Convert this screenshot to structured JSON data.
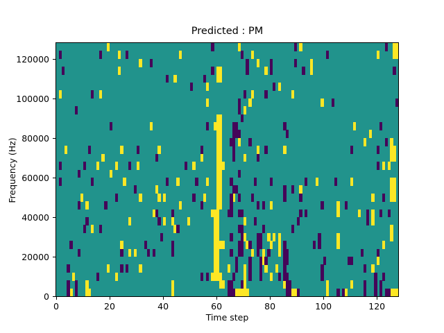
{
  "chart_data": {
    "type": "heatmap",
    "title": "Predicted : PM",
    "xlabel": "Time step",
    "ylabel": "Frequency (Hz)",
    "x_range": [
      0,
      128
    ],
    "y_range_hz": [
      0,
      128000
    ],
    "grid": {
      "cols": 128,
      "rows": 32,
      "hz_per_row": 4000
    },
    "xticks": [
      0,
      20,
      40,
      60,
      80,
      100,
      120
    ],
    "xtick_labels": [
      "0",
      "20",
      "40",
      "60",
      "80",
      "100",
      "120"
    ],
    "yticks": [
      0,
      20000,
      40000,
      60000,
      80000,
      100000,
      120000
    ],
    "ytick_labels": [
      "0",
      "20000",
      "40000",
      "60000",
      "80000",
      "100000",
      "120000"
    ],
    "legend": "none",
    "grid_lines": "off",
    "colors": {
      "background": "#21938c",
      "high": "#fde725",
      "low": "#450559"
    },
    "cells_high": [
      [
        19,
        31
      ],
      [
        68,
        31
      ],
      [
        91,
        31
      ],
      [
        126,
        31
      ],
      [
        127,
        31
      ],
      [
        23,
        30
      ],
      [
        46,
        30
      ],
      [
        73,
        30
      ],
      [
        120,
        30
      ],
      [
        126,
        30
      ],
      [
        127,
        30
      ],
      [
        31,
        29
      ],
      [
        75,
        29
      ],
      [
        95,
        29
      ],
      [
        23,
        28
      ],
      [
        60,
        28
      ],
      [
        61,
        28
      ],
      [
        78,
        28
      ],
      [
        95,
        28
      ],
      [
        44,
        27
      ],
      [
        60,
        27
      ],
      [
        61,
        27
      ],
      [
        56,
        26
      ],
      [
        83,
        26
      ],
      [
        1,
        25
      ],
      [
        16,
        25
      ],
      [
        73,
        25
      ],
      [
        88,
        25
      ],
      [
        56,
        24
      ],
      [
        72,
        24
      ],
      [
        99,
        24
      ],
      [
        70,
        23
      ],
      [
        60,
        22
      ],
      [
        61,
        22
      ],
      [
        35,
        21
      ],
      [
        59,
        21
      ],
      [
        60,
        21
      ],
      [
        61,
        21
      ],
      [
        111,
        21
      ],
      [
        60,
        20
      ],
      [
        61,
        20
      ],
      [
        117,
        20
      ],
      [
        60,
        19
      ],
      [
        61,
        19
      ],
      [
        68,
        19
      ],
      [
        115,
        19
      ],
      [
        125,
        19
      ],
      [
        3,
        18
      ],
      [
        24,
        18
      ],
      [
        38,
        18
      ],
      [
        60,
        18
      ],
      [
        61,
        18
      ],
      [
        75,
        18
      ],
      [
        85,
        18
      ],
      [
        125,
        18
      ],
      [
        126,
        18
      ],
      [
        17,
        17
      ],
      [
        54,
        17
      ],
      [
        60,
        17
      ],
      [
        61,
        17
      ],
      [
        70,
        17
      ],
      [
        125,
        17
      ],
      [
        126,
        17
      ],
      [
        15,
        16
      ],
      [
        22,
        16
      ],
      [
        30,
        16
      ],
      [
        51,
        16
      ],
      [
        60,
        16
      ],
      [
        61,
        16
      ],
      [
        62,
        16
      ],
      [
        122,
        16
      ],
      [
        124,
        16
      ],
      [
        20,
        15
      ],
      [
        60,
        15
      ],
      [
        61,
        15
      ],
      [
        25,
        14
      ],
      [
        45,
        14
      ],
      [
        56,
        14
      ],
      [
        60,
        14
      ],
      [
        61,
        14
      ],
      [
        97,
        14
      ],
      [
        110,
        14
      ],
      [
        125,
        14
      ],
      [
        126,
        14
      ],
      [
        37,
        13
      ],
      [
        60,
        13
      ],
      [
        61,
        13
      ],
      [
        91,
        13
      ],
      [
        125,
        13
      ],
      [
        126,
        13
      ],
      [
        9,
        12
      ],
      [
        31,
        12
      ],
      [
        38,
        12
      ],
      [
        40,
        12
      ],
      [
        55,
        12
      ],
      [
        60,
        12
      ],
      [
        61,
        12
      ],
      [
        66,
        12
      ],
      [
        118,
        12
      ],
      [
        125,
        12
      ],
      [
        126,
        12
      ],
      [
        11,
        11
      ],
      [
        46,
        11
      ],
      [
        60,
        11
      ],
      [
        61,
        11
      ],
      [
        80,
        11
      ],
      [
        105,
        11
      ],
      [
        36,
        10
      ],
      [
        58,
        10
      ],
      [
        59,
        10
      ],
      [
        60,
        10
      ],
      [
        105,
        10
      ],
      [
        113,
        10
      ],
      [
        118,
        10
      ],
      [
        27,
        9
      ],
      [
        40,
        9
      ],
      [
        43,
        9
      ],
      [
        49,
        9
      ],
      [
        59,
        9
      ],
      [
        60,
        9
      ],
      [
        70,
        9
      ],
      [
        118,
        9
      ],
      [
        13,
        8
      ],
      [
        44,
        8
      ],
      [
        59,
        8
      ],
      [
        60,
        8
      ],
      [
        125,
        8
      ],
      [
        59,
        7
      ],
      [
        60,
        7
      ],
      [
        70,
        7
      ],
      [
        79,
        7
      ],
      [
        81,
        7
      ],
      [
        83,
        7
      ],
      [
        105,
        7
      ],
      [
        125,
        7
      ],
      [
        24,
        6
      ],
      [
        59,
        6
      ],
      [
        60,
        6
      ],
      [
        61,
        6
      ],
      [
        62,
        6
      ],
      [
        71,
        6
      ],
      [
        80,
        6
      ],
      [
        83,
        6
      ],
      [
        105,
        6
      ],
      [
        122,
        6
      ],
      [
        27,
        5
      ],
      [
        29,
        5
      ],
      [
        59,
        5
      ],
      [
        60,
        5
      ],
      [
        73,
        5
      ],
      [
        77,
        5
      ],
      [
        83,
        5
      ],
      [
        59,
        4
      ],
      [
        60,
        4
      ],
      [
        77,
        4
      ],
      [
        120,
        4
      ],
      [
        19,
        3
      ],
      [
        31,
        3
      ],
      [
        59,
        3
      ],
      [
        60,
        3
      ],
      [
        64,
        3
      ],
      [
        70,
        3
      ],
      [
        78,
        3
      ],
      [
        82,
        3
      ],
      [
        118,
        3
      ],
      [
        6,
        2
      ],
      [
        22,
        2
      ],
      [
        58,
        2
      ],
      [
        59,
        2
      ],
      [
        60,
        2
      ],
      [
        61,
        2
      ],
      [
        70,
        2
      ],
      [
        80,
        2
      ],
      [
        11,
        1
      ],
      [
        43,
        1
      ],
      [
        61,
        1
      ],
      [
        62,
        1
      ],
      [
        70,
        1
      ],
      [
        85,
        1
      ],
      [
        101,
        1
      ],
      [
        110,
        1
      ],
      [
        5,
        0
      ],
      [
        11,
        0
      ],
      [
        12,
        0
      ],
      [
        43,
        0
      ],
      [
        67,
        0
      ],
      [
        68,
        0
      ],
      [
        69,
        0
      ],
      [
        70,
        0
      ],
      [
        71,
        0
      ],
      [
        88,
        0
      ],
      [
        89,
        0
      ],
      [
        101,
        0
      ],
      [
        108,
        0
      ],
      [
        125,
        0
      ],
      [
        126,
        0
      ],
      [
        127,
        0
      ]
    ],
    "cells_low": [
      [
        58,
        31
      ],
      [
        89,
        31
      ],
      [
        123,
        31
      ],
      [
        1,
        30
      ],
      [
        16,
        30
      ],
      [
        26,
        30
      ],
      [
        69,
        30
      ],
      [
        101,
        30
      ],
      [
        35,
        29
      ],
      [
        71,
        29
      ],
      [
        80,
        29
      ],
      [
        89,
        29
      ],
      [
        2,
        28
      ],
      [
        58,
        28
      ],
      [
        71,
        28
      ],
      [
        80,
        28
      ],
      [
        92,
        28
      ],
      [
        126,
        28
      ],
      [
        41,
        27
      ],
      [
        55,
        27
      ],
      [
        50,
        26
      ],
      [
        81,
        26
      ],
      [
        13,
        25
      ],
      [
        70,
        25
      ],
      [
        78,
        25
      ],
      [
        68,
        24
      ],
      [
        103,
        24
      ],
      [
        127,
        24
      ],
      [
        7,
        23
      ],
      [
        68,
        23
      ],
      [
        69,
        22
      ],
      [
        20,
        21
      ],
      [
        56,
        21
      ],
      [
        66,
        21
      ],
      [
        67,
        21
      ],
      [
        85,
        21
      ],
      [
        121,
        21
      ],
      [
        66,
        20
      ],
      [
        67,
        20
      ],
      [
        68,
        20
      ],
      [
        86,
        20
      ],
      [
        65,
        19
      ],
      [
        66,
        19
      ],
      [
        72,
        19
      ],
      [
        123,
        19
      ],
      [
        12,
        18
      ],
      [
        30,
        18
      ],
      [
        54,
        18
      ],
      [
        66,
        18
      ],
      [
        78,
        18
      ],
      [
        110,
        18
      ],
      [
        120,
        18
      ],
      [
        37,
        17
      ],
      [
        66,
        17
      ],
      [
        75,
        17
      ],
      [
        1,
        16
      ],
      [
        10,
        16
      ],
      [
        27,
        16
      ],
      [
        48,
        16
      ],
      [
        120,
        16
      ],
      [
        8,
        15
      ],
      [
        68,
        15
      ],
      [
        1,
        14
      ],
      [
        13,
        14
      ],
      [
        41,
        14
      ],
      [
        52,
        14
      ],
      [
        65,
        14
      ],
      [
        74,
        14
      ],
      [
        80,
        14
      ],
      [
        93,
        14
      ],
      [
        104,
        14
      ],
      [
        29,
        13
      ],
      [
        66,
        13
      ],
      [
        67,
        13
      ],
      [
        85,
        13
      ],
      [
        88,
        13
      ],
      [
        22,
        12
      ],
      [
        51,
        12
      ],
      [
        65,
        12
      ],
      [
        68,
        12
      ],
      [
        73,
        12
      ],
      [
        85,
        12
      ],
      [
        91,
        12
      ],
      [
        122,
        12
      ],
      [
        8,
        11
      ],
      [
        18,
        11
      ],
      [
        54,
        11
      ],
      [
        65,
        11
      ],
      [
        75,
        11
      ],
      [
        77,
        11
      ],
      [
        99,
        11
      ],
      [
        108,
        11
      ],
      [
        37,
        10
      ],
      [
        43,
        10
      ],
      [
        64,
        10
      ],
      [
        65,
        10
      ],
      [
        68,
        10
      ],
      [
        69,
        10
      ],
      [
        91,
        10
      ],
      [
        93,
        10
      ],
      [
        116,
        10
      ],
      [
        121,
        10
      ],
      [
        124,
        10
      ],
      [
        11,
        9
      ],
      [
        38,
        9
      ],
      [
        74,
        9
      ],
      [
        90,
        9
      ],
      [
        116,
        9
      ],
      [
        10,
        8
      ],
      [
        16,
        8
      ],
      [
        45,
        8
      ],
      [
        68,
        8
      ],
      [
        69,
        8
      ],
      [
        77,
        8
      ],
      [
        88,
        8
      ],
      [
        39,
        7
      ],
      [
        65,
        7
      ],
      [
        69,
        7
      ],
      [
        75,
        7
      ],
      [
        76,
        7
      ],
      [
        98,
        7
      ],
      [
        5,
        6
      ],
      [
        33,
        6
      ],
      [
        43,
        6
      ],
      [
        68,
        6
      ],
      [
        69,
        6
      ],
      [
        72,
        6
      ],
      [
        75,
        6
      ],
      [
        76,
        6
      ],
      [
        85,
        6
      ],
      [
        96,
        6
      ],
      [
        98,
        6
      ],
      [
        8,
        5
      ],
      [
        24,
        5
      ],
      [
        34,
        5
      ],
      [
        36,
        5
      ],
      [
        43,
        5
      ],
      [
        65,
        5
      ],
      [
        68,
        5
      ],
      [
        69,
        5
      ],
      [
        75,
        5
      ],
      [
        79,
        5
      ],
      [
        85,
        5
      ],
      [
        86,
        5
      ],
      [
        114,
        5
      ],
      [
        120,
        5
      ],
      [
        67,
        4
      ],
      [
        72,
        4
      ],
      [
        76,
        4
      ],
      [
        78,
        4
      ],
      [
        85,
        4
      ],
      [
        86,
        4
      ],
      [
        100,
        4
      ],
      [
        109,
        4
      ],
      [
        110,
        4
      ],
      [
        4,
        3
      ],
      [
        24,
        3
      ],
      [
        26,
        3
      ],
      [
        67,
        3
      ],
      [
        72,
        3
      ],
      [
        76,
        3
      ],
      [
        85,
        3
      ],
      [
        99,
        3
      ],
      [
        115,
        3
      ],
      [
        15,
        2
      ],
      [
        54,
        2
      ],
      [
        56,
        2
      ],
      [
        66,
        2
      ],
      [
        72,
        2
      ],
      [
        76,
        2
      ],
      [
        83,
        2
      ],
      [
        85,
        2
      ],
      [
        86,
        2
      ],
      [
        99,
        2
      ],
      [
        119,
        2
      ],
      [
        122,
        2
      ],
      [
        4,
        1
      ],
      [
        7,
        1
      ],
      [
        64,
        1
      ],
      [
        65,
        1
      ],
      [
        69,
        1
      ],
      [
        86,
        1
      ],
      [
        87,
        1
      ],
      [
        115,
        1
      ],
      [
        119,
        1
      ],
      [
        121,
        1
      ],
      [
        4,
        0
      ],
      [
        7,
        0
      ],
      [
        64,
        0
      ],
      [
        65,
        0
      ],
      [
        66,
        0
      ],
      [
        86,
        0
      ],
      [
        87,
        0
      ],
      [
        90,
        0
      ],
      [
        105,
        0
      ],
      [
        107,
        0
      ],
      [
        115,
        0
      ],
      [
        119,
        0
      ],
      [
        121,
        0
      ],
      [
        123,
        0
      ],
      [
        124,
        0
      ]
    ]
  }
}
